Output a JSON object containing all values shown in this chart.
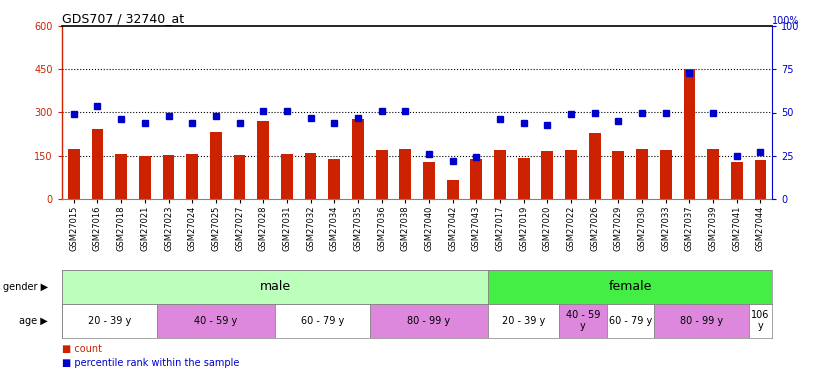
{
  "title": "GDS707 / 32740_at",
  "samples": [
    "GSM27015",
    "GSM27016",
    "GSM27018",
    "GSM27021",
    "GSM27023",
    "GSM27024",
    "GSM27025",
    "GSM27027",
    "GSM27028",
    "GSM27031",
    "GSM27032",
    "GSM27034",
    "GSM27035",
    "GSM27036",
    "GSM27038",
    "GSM27040",
    "GSM27042",
    "GSM27043",
    "GSM27017",
    "GSM27019",
    "GSM27020",
    "GSM27022",
    "GSM27026",
    "GSM27029",
    "GSM27030",
    "GSM27033",
    "GSM27037",
    "GSM27039",
    "GSM27041",
    "GSM27044"
  ],
  "counts": [
    172,
    242,
    155,
    148,
    152,
    157,
    232,
    152,
    272,
    155,
    160,
    138,
    278,
    170,
    172,
    128,
    65,
    138,
    170,
    142,
    167,
    168,
    228,
    167,
    172,
    170,
    452,
    172,
    128,
    135
  ],
  "percentiles": [
    49,
    54,
    46,
    44,
    48,
    44,
    48,
    44,
    51,
    51,
    47,
    44,
    47,
    51,
    51,
    26,
    22,
    24,
    46,
    44,
    43,
    49,
    50,
    45,
    50,
    50,
    73,
    50,
    25,
    27
  ],
  "ylim_left": [
    0,
    600
  ],
  "ylim_right": [
    0,
    100
  ],
  "yticks_left": [
    0,
    150,
    300,
    450,
    600
  ],
  "yticks_right": [
    0,
    25,
    50,
    75,
    100
  ],
  "bar_color": "#cc2200",
  "dot_color": "#0000cc",
  "gender_groups": [
    {
      "label": "male",
      "start": 0,
      "end": 18,
      "color": "#bbffbb"
    },
    {
      "label": "female",
      "start": 18,
      "end": 30,
      "color": "#44ee44"
    }
  ],
  "age_groups": [
    {
      "label": "20 - 39 y",
      "start": 0,
      "end": 4,
      "color": "#ffffff"
    },
    {
      "label": "40 - 59 y",
      "start": 4,
      "end": 9,
      "color": "#dd88dd"
    },
    {
      "label": "60 - 79 y",
      "start": 9,
      "end": 13,
      "color": "#ffffff"
    },
    {
      "label": "80 - 99 y",
      "start": 13,
      "end": 18,
      "color": "#dd88dd"
    },
    {
      "label": "20 - 39 y",
      "start": 18,
      "end": 21,
      "color": "#ffffff"
    },
    {
      "label": "40 - 59\ny",
      "start": 21,
      "end": 23,
      "color": "#dd88dd"
    },
    {
      "label": "60 - 79 y",
      "start": 23,
      "end": 25,
      "color": "#ffffff"
    },
    {
      "label": "80 - 99 y",
      "start": 25,
      "end": 29,
      "color": "#dd88dd"
    },
    {
      "label": "106\ny",
      "start": 29,
      "end": 30,
      "color": "#ffffff"
    }
  ]
}
